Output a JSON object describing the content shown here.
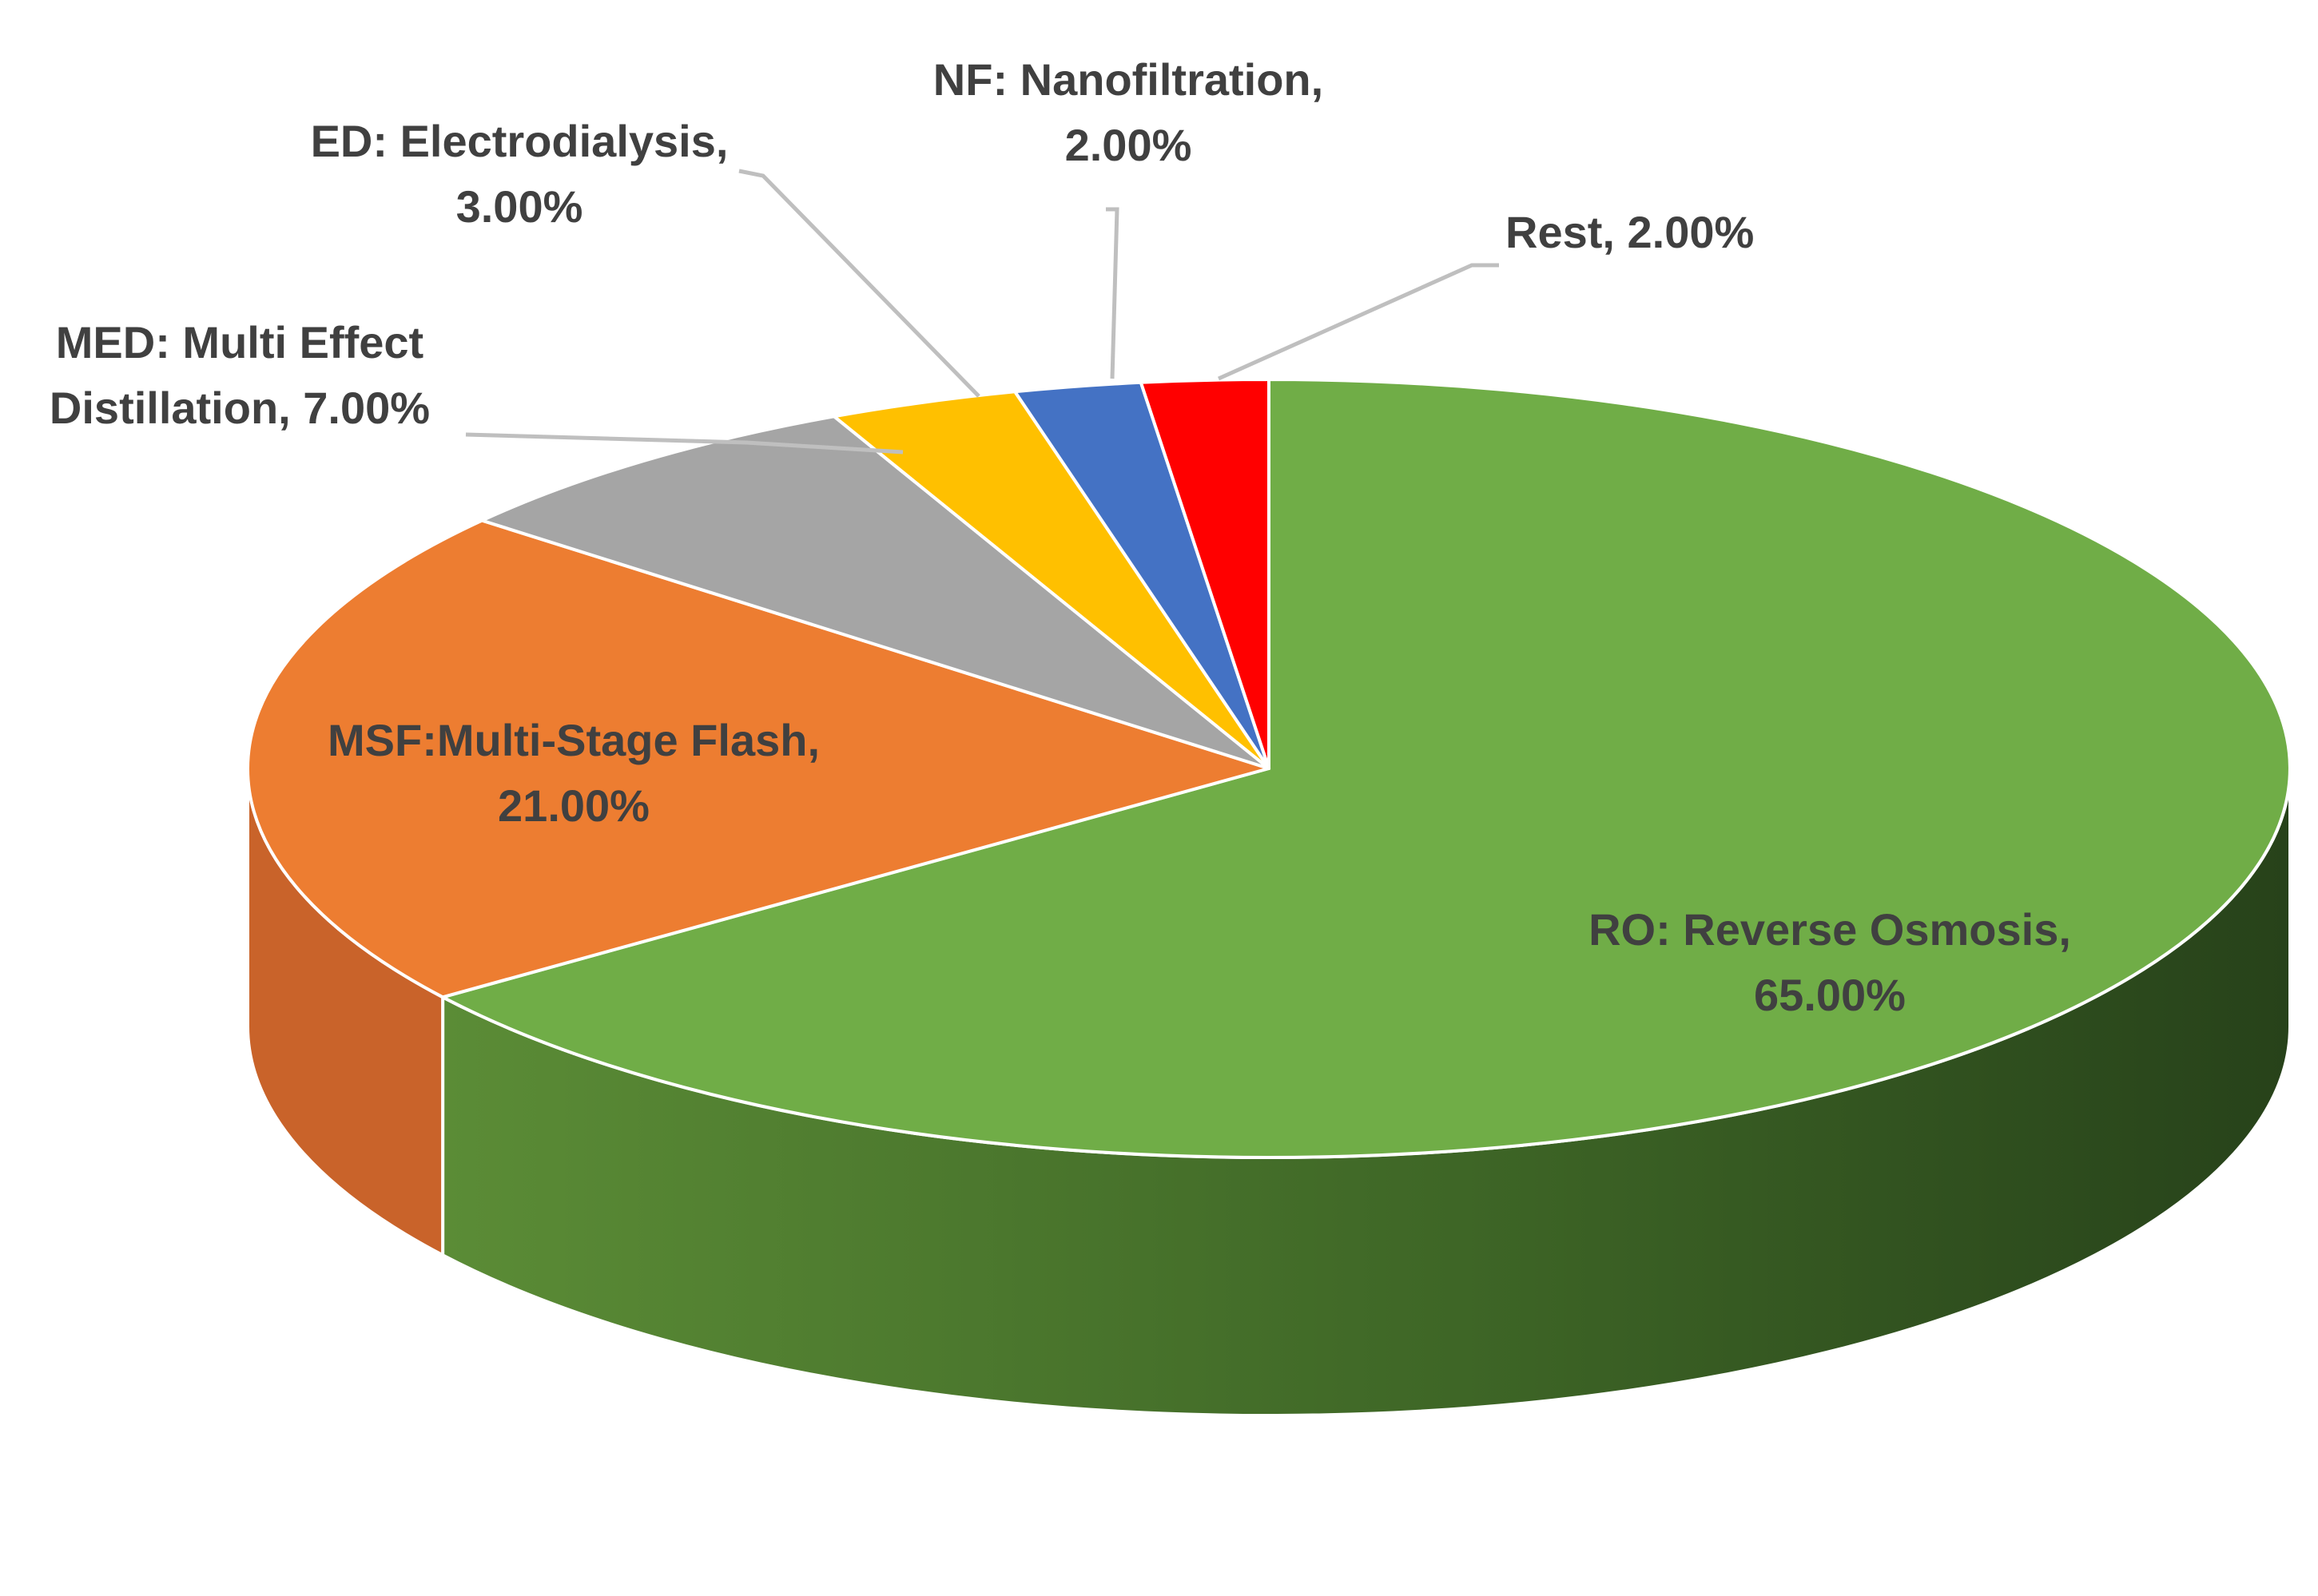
{
  "chart_data": {
    "type": "pie",
    "title": "",
    "style": "3d",
    "slices": [
      {
        "label": "RO: Reverse Osmosis",
        "value": 65.0,
        "value_text": "65.00%",
        "color": "#70ad47",
        "side_color": "#3f6a27"
      },
      {
        "label": "MSF:Multi-Stage Flash",
        "value": 21.0,
        "value_text": "21.00%",
        "color": "#ed7d31",
        "side_color": "#c9632a"
      },
      {
        "label": "MED: Multi Effect Distillation",
        "value": 7.0,
        "value_text": "7.00%",
        "color": "#a5a5a5",
        "side_color": "#7f7f7f"
      },
      {
        "label": "ED: Electrodialysis",
        "value": 3.0,
        "value_text": "3.00%",
        "color": "#ffc000",
        "side_color": "#c99700"
      },
      {
        "label": "NF: Nanofiltration",
        "value": 2.0,
        "value_text": "2.00%",
        "color": "#4472c4",
        "side_color": "#2f5597"
      },
      {
        "label": "Rest",
        "value": 2.0,
        "value_text": "2.00%",
        "color": "#ff0000",
        "side_color": "#c00000"
      }
    ]
  }
}
